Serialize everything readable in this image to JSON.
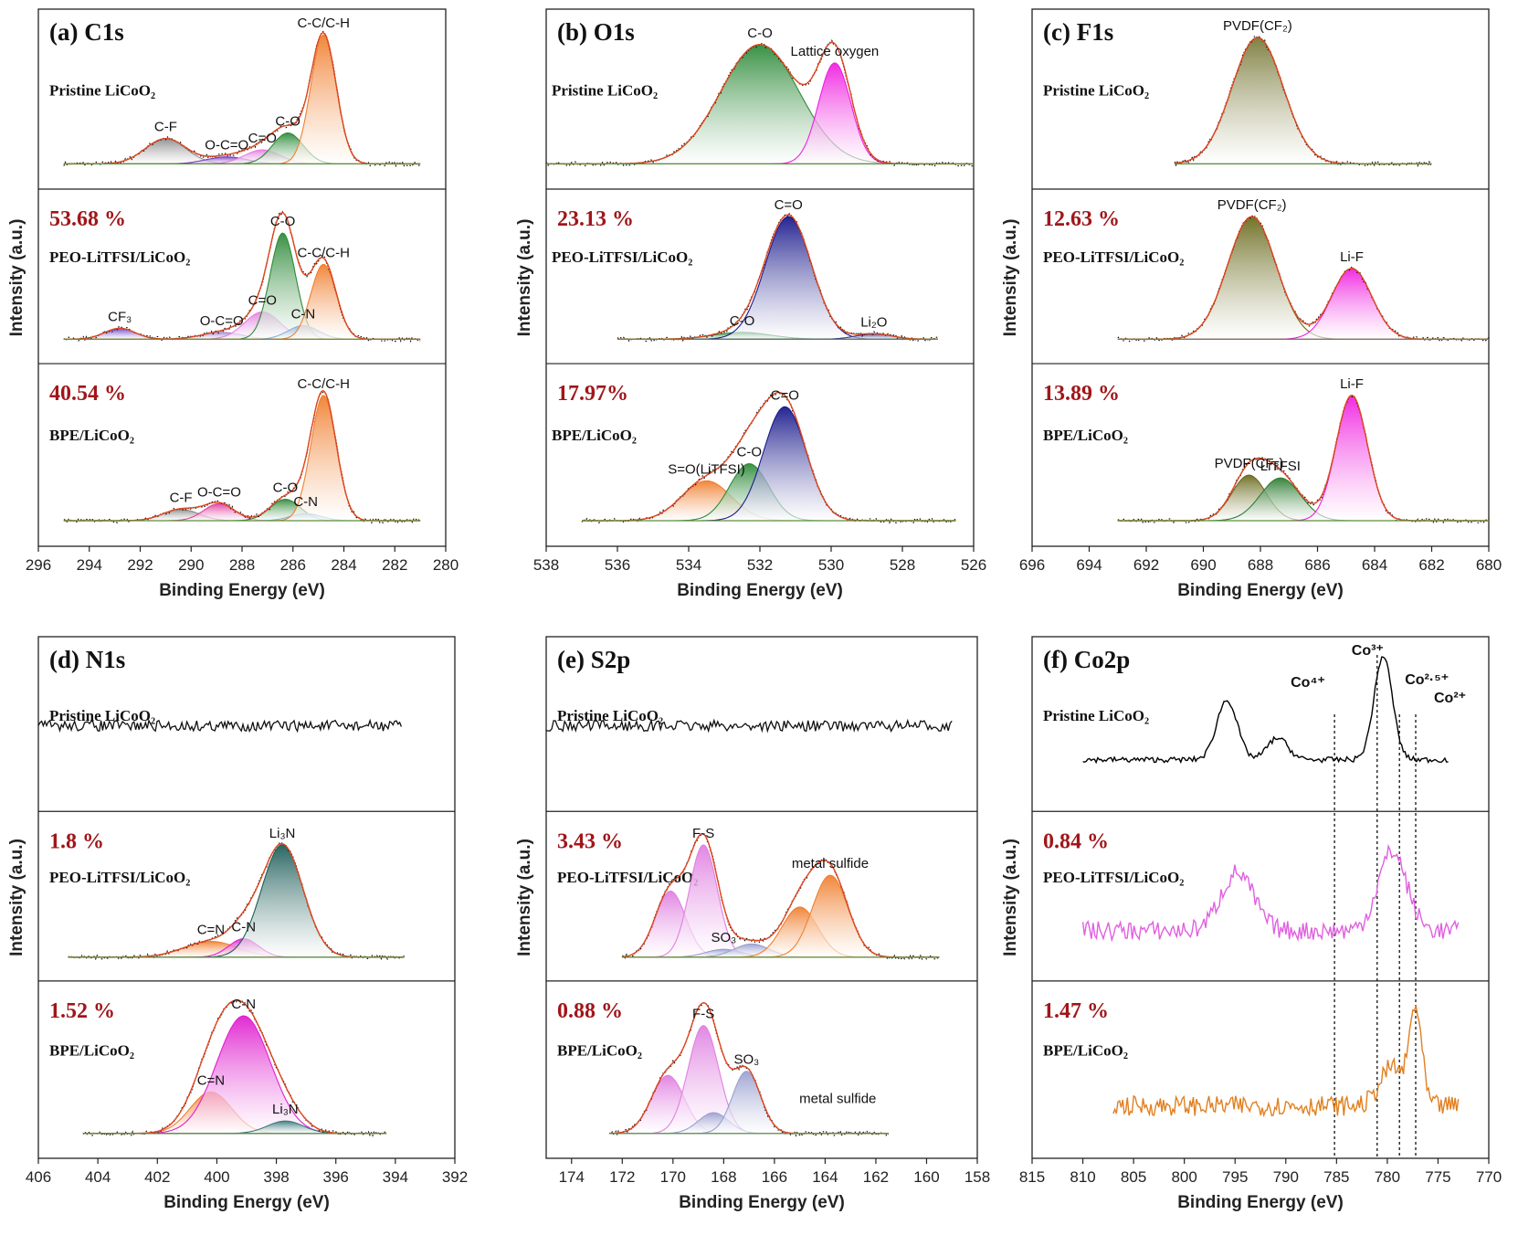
{
  "chart_data": [
    {
      "id": "a",
      "type": "line",
      "title": "(a) C1s",
      "xlabel": "Binding Energy (eV)",
      "ylabel": "Intensity (a.u.)",
      "xlim": [
        296,
        280
      ],
      "xticks": [
        296,
        294,
        292,
        290,
        288,
        286,
        284,
        282,
        280
      ],
      "stacked_panels": [
        {
          "sample": "Pristine LiCoO₂",
          "percentage": "",
          "x_range": [
            295,
            281
          ],
          "peaks": [
            {
              "label": "C-F",
              "center": 291.0,
              "height": 0.18,
              "width": 0.8,
              "color": "#8c8c8c"
            },
            {
              "label": "O-C=O",
              "center": 288.6,
              "height": 0.05,
              "width": 0.8,
              "color": "#7a3fc2"
            },
            {
              "label": "C=O",
              "center": 287.2,
              "height": 0.1,
              "width": 0.7,
              "color": "#e57fe0"
            },
            {
              "label": "C-O",
              "center": 286.2,
              "height": 0.22,
              "width": 0.6,
              "color": "#2e8b3a"
            },
            {
              "label": "C-C/C-H",
              "center": 284.8,
              "height": 0.92,
              "width": 0.5,
              "color": "#f08030"
            }
          ]
        },
        {
          "sample": "PEO-LiTFSI/LiCoO₂",
          "percentage": "53.68 %",
          "x_range": [
            295,
            281
          ],
          "peaks": [
            {
              "label": "CF₃",
              "center": 292.8,
              "height": 0.08,
              "width": 0.6,
              "color": "#6a3fc9"
            },
            {
              "label": "O-C=O",
              "center": 288.8,
              "height": 0.05,
              "width": 0.8,
              "color": "#a78ad0"
            },
            {
              "label": "C=O",
              "center": 287.2,
              "height": 0.2,
              "width": 0.7,
              "color": "#e57fe0"
            },
            {
              "label": "C-O",
              "center": 286.4,
              "height": 0.78,
              "width": 0.5,
              "color": "#2e8b3a"
            },
            {
              "label": "C-N",
              "center": 285.6,
              "height": 0.1,
              "width": 0.6,
              "color": "#8fb2d8"
            },
            {
              "label": "C-C/C-H",
              "center": 284.8,
              "height": 0.55,
              "width": 0.5,
              "color": "#f08030"
            }
          ]
        },
        {
          "sample": "BPE/LiCoO₂",
          "percentage": "40.54 %",
          "x_range": [
            295,
            281
          ],
          "peaks": [
            {
              "label": "C-F",
              "center": 290.4,
              "height": 0.08,
              "width": 0.7,
              "color": "#8c8c8c"
            },
            {
              "label": "O-C=O",
              "center": 288.9,
              "height": 0.12,
              "width": 0.6,
              "color": "#e040a0"
            },
            {
              "label": "C-O",
              "center": 286.3,
              "height": 0.15,
              "width": 0.6,
              "color": "#2e8b3a"
            },
            {
              "label": "C-N",
              "center": 285.5,
              "height": 0.05,
              "width": 0.6,
              "color": "#8fb2d8"
            },
            {
              "label": "C-C/C-H",
              "center": 284.8,
              "height": 0.88,
              "width": 0.5,
              "color": "#f08030"
            }
          ]
        }
      ]
    },
    {
      "id": "b",
      "type": "line",
      "title": "(b) O1s",
      "xlabel": "Binding Energy (eV)",
      "ylabel": "Intensity (a.u.)",
      "xlim": [
        538,
        526
      ],
      "xticks": [
        538,
        536,
        534,
        532,
        530,
        528,
        526
      ],
      "stacked_panels": [
        {
          "sample": "Pristine LiCoO₂",
          "percentage": "",
          "x_range": [
            538,
            526
          ],
          "peaks": [
            {
              "label": "C-O",
              "center": 532.0,
              "height": 0.85,
              "width": 1.1,
              "color": "#2e8b3a"
            },
            {
              "label": "Lattice oxygen",
              "center": 529.9,
              "height": 0.72,
              "width": 0.45,
              "color": "#f020e0"
            }
          ]
        },
        {
          "sample": "PEO-LiTFSI/LiCoO₂",
          "percentage": "23.13 %",
          "x_range": [
            536,
            527
          ],
          "peaks": [
            {
              "label": "C-O",
              "center": 532.5,
              "height": 0.05,
              "width": 0.8,
              "color": "#2e8b3a"
            },
            {
              "label": "C=O",
              "center": 531.2,
              "height": 0.9,
              "width": 0.65,
              "color": "#1a1a8c"
            },
            {
              "label": "Li₂O",
              "center": 528.8,
              "height": 0.04,
              "width": 0.5,
              "color": "#3a3a9a"
            }
          ]
        },
        {
          "sample": "BPE/LiCoO₂",
          "percentage": "17.97%",
          "x_range": [
            537,
            526.5
          ],
          "peaks": [
            {
              "label": "S=O(LiTFSI)",
              "center": 533.5,
              "height": 0.28,
              "width": 0.7,
              "color": "#f08030"
            },
            {
              "label": "C-O",
              "center": 532.3,
              "height": 0.4,
              "width": 0.55,
              "color": "#2e8b3a"
            },
            {
              "label": "C=O",
              "center": 531.3,
              "height": 0.8,
              "width": 0.6,
              "color": "#1a1a8c"
            }
          ]
        }
      ]
    },
    {
      "id": "c",
      "type": "line",
      "title": "(c) F1s",
      "xlabel": "Binding Energy (eV)",
      "ylabel": "Intensity (a.u.)",
      "xlim": [
        696,
        680
      ],
      "xticks": [
        696,
        694,
        692,
        690,
        688,
        686,
        684,
        682,
        680
      ],
      "stacked_panels": [
        {
          "sample": "Pristine LiCoO₂",
          "percentage": "",
          "x_range": [
            691,
            682
          ],
          "peaks": [
            {
              "label": "PVDF(CF₂)",
              "center": 688.1,
              "height": 0.9,
              "width": 0.9,
              "color": "#7a7a3a"
            }
          ]
        },
        {
          "sample": "PEO-LiTFSI/LiCoO₂",
          "percentage": "12.63 %",
          "x_range": [
            693,
            680
          ],
          "peaks": [
            {
              "label": "PVDF(CF₂)",
              "center": 688.3,
              "height": 0.9,
              "width": 0.85,
              "color": "#6b6b1e"
            },
            {
              "label": "Li-F",
              "center": 684.8,
              "height": 0.52,
              "width": 0.7,
              "color": "#f020e0"
            }
          ]
        },
        {
          "sample": "BPE/LiCoO₂",
          "percentage": "13.89 %",
          "x_range": [
            693,
            680
          ],
          "peaks": [
            {
              "label": "PVDF(CF₂)",
              "center": 688.4,
              "height": 0.32,
              "width": 0.6,
              "color": "#6b6b1e"
            },
            {
              "label": "LiTFSI",
              "center": 687.3,
              "height": 0.3,
              "width": 0.7,
              "color": "#2e7d32"
            },
            {
              "label": "Li-F",
              "center": 684.8,
              "height": 0.88,
              "width": 0.55,
              "color": "#f020e0"
            }
          ]
        }
      ]
    },
    {
      "id": "d",
      "type": "line",
      "title": "(d) N1s",
      "xlabel": "Binding Energy (eV)",
      "ylabel": "Intensity (a.u.)",
      "xlim": [
        406,
        392
      ],
      "xticks": [
        406,
        404,
        402,
        400,
        398,
        396,
        394,
        392
      ],
      "stacked_panels": [
        {
          "sample": "Pristine LiCoO₂",
          "percentage": "",
          "x_range": [
            406,
            393.8
          ],
          "noise_only": true,
          "peaks": []
        },
        {
          "sample": "PEO-LiTFSI/LiCoO₂",
          "percentage": "1.8 %",
          "x_range": [
            405,
            393.7
          ],
          "peaks": [
            {
              "label": "C=N",
              "center": 400.2,
              "height": 0.12,
              "width": 0.9,
              "color": "#f08030"
            },
            {
              "label": "C-N",
              "center": 399.1,
              "height": 0.14,
              "width": 0.5,
              "color": "#e020d0"
            },
            {
              "label": "Li₃N",
              "center": 397.8,
              "height": 0.85,
              "width": 0.7,
              "color": "#1e5e5a"
            }
          ]
        },
        {
          "sample": "BPE/LiCoO₂",
          "percentage": "1.52 %",
          "x_range": [
            404.5,
            394.3
          ],
          "peaks": [
            {
              "label": "C=N",
              "center": 400.2,
              "height": 0.3,
              "width": 0.7,
              "color": "#f08030"
            },
            {
              "label": "C-N",
              "center": 399.1,
              "height": 0.85,
              "width": 0.9,
              "color": "#e020d0"
            },
            {
              "label": "Li₃N",
              "center": 397.7,
              "height": 0.09,
              "width": 0.6,
              "color": "#3a7a7a"
            }
          ]
        }
      ]
    },
    {
      "id": "e",
      "type": "line",
      "title": "(e) S2p",
      "xlabel": "Binding Energy (eV)",
      "ylabel": "Intensity (a.u.)",
      "xlim": [
        175,
        158
      ],
      "xticks": [
        174,
        172,
        170,
        168,
        166,
        164,
        162,
        160,
        158
      ],
      "stacked_panels": [
        {
          "sample": "Pristine LiCoO₂",
          "percentage": "",
          "x_range": [
            175,
            159
          ],
          "noise_only": true,
          "peaks": []
        },
        {
          "sample": "PEO-LiTFSI/LiCoO₂",
          "percentage": "3.43 %",
          "x_range": [
            172,
            159.5
          ],
          "peaks": [
            {
              "label": "",
              "center": 170.1,
              "height": 0.5,
              "width": 0.6,
              "color": "#e080e0"
            },
            {
              "label": "F-S",
              "center": 168.8,
              "height": 0.85,
              "width": 0.55,
              "color": "#e080e0"
            },
            {
              "label": "SO₃",
              "center": 168.0,
              "height": 0.06,
              "width": 0.7,
              "color": "#9aa0d0"
            },
            {
              "label": "",
              "center": 166.9,
              "height": 0.1,
              "width": 0.7,
              "color": "#9aa0d0"
            },
            {
              "label": "",
              "center": 165.0,
              "height": 0.38,
              "width": 0.7,
              "color": "#f08030"
            },
            {
              "label": "metal sulfide",
              "center": 163.8,
              "height": 0.62,
              "width": 0.7,
              "color": "#f08030"
            }
          ]
        },
        {
          "sample": "BPE/LiCoO₂",
          "percentage": "0.88 %",
          "x_range": [
            172.5,
            161.5
          ],
          "peaks": [
            {
              "label": "",
              "center": 170.2,
              "height": 0.42,
              "width": 0.65,
              "color": "#e080e0"
            },
            {
              "label": "F-S",
              "center": 168.8,
              "height": 0.78,
              "width": 0.6,
              "color": "#e080e0"
            },
            {
              "label": "",
              "center": 168.4,
              "height": 0.15,
              "width": 0.6,
              "color": "#9aa0d0"
            },
            {
              "label": "SO₃",
              "center": 167.1,
              "height": 0.45,
              "width": 0.55,
              "color": "#9aa0d0"
            }
          ],
          "annotations": [
            "metal sulfide"
          ]
        }
      ]
    },
    {
      "id": "f",
      "type": "line",
      "title": "(f) Co2p",
      "xlabel": "Binding Energy (eV)",
      "ylabel": "Intensity (a.u.)",
      "xlim": [
        815,
        770
      ],
      "xticks": [
        815,
        810,
        805,
        800,
        795,
        790,
        785,
        780,
        775,
        770
      ],
      "reference_lines": [
        {
          "label": "Co⁴⁺",
          "x": 785.2
        },
        {
          "label": "Co³⁺",
          "x": 781.0
        },
        {
          "label": "Co²·⁵⁺",
          "x": 778.8
        },
        {
          "label": "Co²⁺",
          "x": 777.2
        }
      ],
      "stacked_panels": [
        {
          "sample": "Pristine LiCoO₂",
          "percentage": "",
          "color": "#000000",
          "x_range": [
            810,
            774
          ],
          "peaks": [
            {
              "center": 795.8,
              "height": 0.55,
              "width": 1.0
            },
            {
              "center": 790.8,
              "height": 0.2,
              "width": 1.0
            },
            {
              "center": 780.4,
              "height": 0.95,
              "width": 0.9
            }
          ]
        },
        {
          "sample": "PEO-LiTFSI/LiCoO₂",
          "percentage": "0.84 %",
          "color": "#e060e0",
          "x_range": [
            810,
            773
          ],
          "peaks": [
            {
              "center": 794.8,
              "height": 0.55,
              "width": 1.6
            },
            {
              "center": 779.5,
              "height": 0.75,
              "width": 1.4
            }
          ]
        },
        {
          "sample": "BPE/LiCoO₂",
          "percentage": "1.47 %",
          "color": "#e08020",
          "x_range": [
            807,
            773
          ],
          "peaks": [
            {
              "center": 779.5,
              "height": 0.35,
              "width": 1.2
            },
            {
              "center": 777.2,
              "height": 0.85,
              "width": 0.6
            }
          ]
        }
      ]
    }
  ]
}
